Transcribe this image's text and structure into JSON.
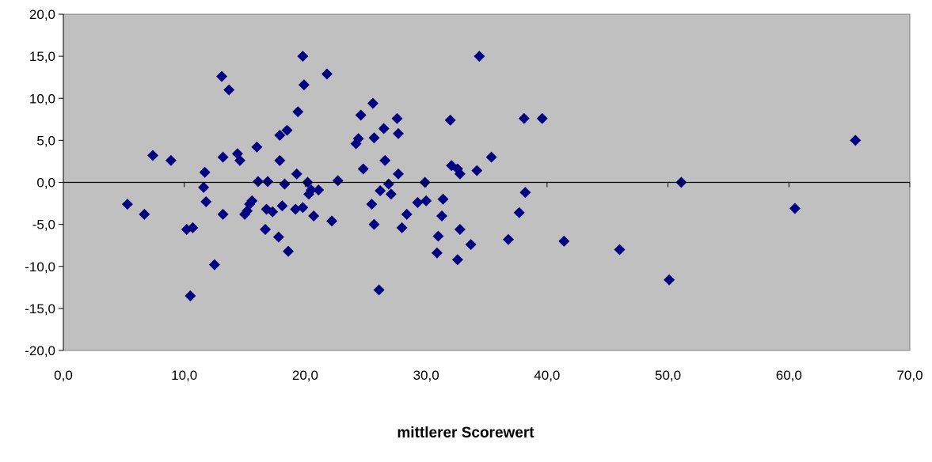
{
  "chart_data": {
    "type": "scatter",
    "title": "",
    "xlabel": "mittlerer Scorewert",
    "ylabel": "",
    "xlim": [
      0,
      70
    ],
    "ylim": [
      -20,
      20
    ],
    "x_ticks": [
      "0,0",
      "10,0",
      "20,0",
      "30,0",
      "40,0",
      "50,0",
      "60,0",
      "70,0"
    ],
    "y_ticks": [
      "20,0",
      "15,0",
      "10,0",
      "5,0",
      "0,0",
      "-5,0",
      "-10,0",
      "-15,0",
      "-20,0"
    ],
    "plot_background": "#c0c0c0",
    "marker_color": "#000080",
    "marker": "diamond",
    "grid": false,
    "zero_line": true,
    "legend": "none",
    "points": [
      [
        5.3,
        -2.6
      ],
      [
        6.7,
        -3.8
      ],
      [
        7.4,
        3.2
      ],
      [
        8.9,
        2.6
      ],
      [
        10.2,
        -5.6
      ],
      [
        10.5,
        -13.5
      ],
      [
        10.7,
        -5.4
      ],
      [
        11.6,
        -0.6
      ],
      [
        11.7,
        1.2
      ],
      [
        11.8,
        -2.3
      ],
      [
        12.5,
        -9.8
      ],
      [
        13.1,
        12.6
      ],
      [
        13.2,
        3.0
      ],
      [
        13.2,
        -3.8
      ],
      [
        13.7,
        11.0
      ],
      [
        14.4,
        3.4
      ],
      [
        14.6,
        2.6
      ],
      [
        15.0,
        -3.8
      ],
      [
        15.2,
        -3.4
      ],
      [
        15.4,
        -2.6
      ],
      [
        15.6,
        -2.2
      ],
      [
        16.0,
        4.2
      ],
      [
        16.1,
        0.1
      ],
      [
        16.7,
        -5.6
      ],
      [
        16.8,
        -3.2
      ],
      [
        16.9,
        0.1
      ],
      [
        17.3,
        -3.5
      ],
      [
        17.8,
        -6.5
      ],
      [
        17.9,
        2.6
      ],
      [
        17.9,
        5.6
      ],
      [
        18.1,
        -2.8
      ],
      [
        18.3,
        -0.2
      ],
      [
        18.5,
        6.2
      ],
      [
        18.6,
        -8.2
      ],
      [
        19.2,
        -3.2
      ],
      [
        19.3,
        1.0
      ],
      [
        19.4,
        8.4
      ],
      [
        19.8,
        -3.0
      ],
      [
        19.8,
        15.0
      ],
      [
        19.9,
        11.6
      ],
      [
        20.2,
        0.0
      ],
      [
        20.3,
        -1.4
      ],
      [
        20.5,
        -0.9
      ],
      [
        20.7,
        -4.0
      ],
      [
        21.1,
        -0.9
      ],
      [
        21.8,
        12.9
      ],
      [
        22.2,
        -4.6
      ],
      [
        22.7,
        0.2
      ],
      [
        24.2,
        4.6
      ],
      [
        24.4,
        5.2
      ],
      [
        24.6,
        8.0
      ],
      [
        24.8,
        1.6
      ],
      [
        25.5,
        -2.6
      ],
      [
        25.6,
        9.4
      ],
      [
        25.7,
        -5.0
      ],
      [
        25.7,
        5.3
      ],
      [
        26.1,
        -12.8
      ],
      [
        26.2,
        -1.0
      ],
      [
        26.5,
        6.4
      ],
      [
        26.6,
        2.6
      ],
      [
        26.9,
        -0.2
      ],
      [
        27.1,
        -1.4
      ],
      [
        27.6,
        7.6
      ],
      [
        27.7,
        5.8
      ],
      [
        27.7,
        1.0
      ],
      [
        28.0,
        -5.4
      ],
      [
        28.4,
        -3.8
      ],
      [
        29.3,
        -2.4
      ],
      [
        29.9,
        0.0
      ],
      [
        30.0,
        -2.2
      ],
      [
        30.9,
        -8.4
      ],
      [
        31.0,
        -6.4
      ],
      [
        31.3,
        -4.0
      ],
      [
        31.4,
        -2.0
      ],
      [
        32.0,
        7.4
      ],
      [
        32.1,
        2.0
      ],
      [
        32.6,
        -9.2
      ],
      [
        32.6,
        1.6
      ],
      [
        32.8,
        -5.6
      ],
      [
        32.8,
        1.0
      ],
      [
        33.7,
        -7.4
      ],
      [
        34.2,
        1.4
      ],
      [
        34.4,
        15.0
      ],
      [
        35.4,
        3.0
      ],
      [
        36.8,
        -6.8
      ],
      [
        37.7,
        -3.6
      ],
      [
        38.1,
        7.6
      ],
      [
        38.2,
        -1.2
      ],
      [
        39.6,
        7.6
      ],
      [
        41.4,
        -7.0
      ],
      [
        46.0,
        -8.0
      ],
      [
        50.1,
        -11.6
      ],
      [
        51.1,
        0.0
      ],
      [
        60.5,
        -3.1
      ],
      [
        65.5,
        5.0
      ]
    ]
  }
}
